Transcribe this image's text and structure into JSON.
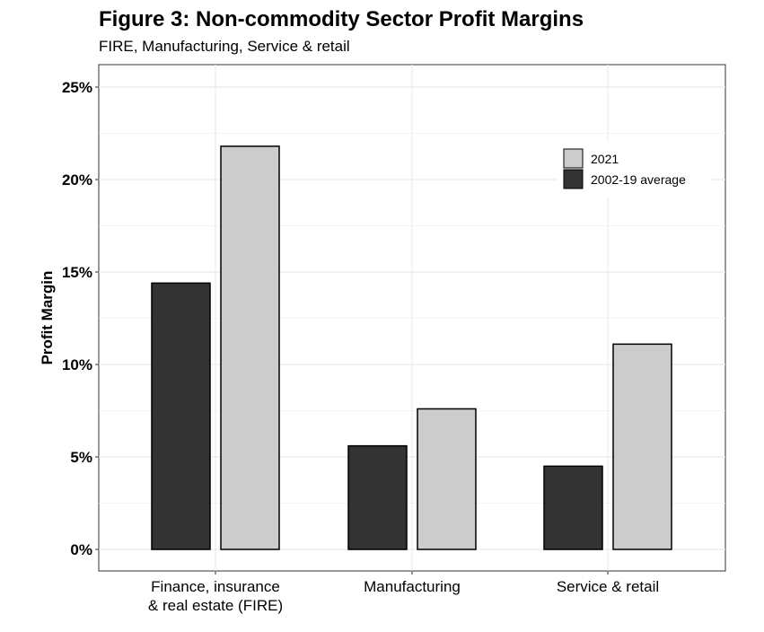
{
  "title": "Figure 3: Non-commodity Sector Profit Margins",
  "subtitle": "FIRE, Manufacturing, Service & retail",
  "chart_data": {
    "type": "bar",
    "title": "Figure 3: Non-commodity Sector Profit Margins",
    "subtitle": "FIRE, Manufacturing, Service & retail",
    "xlabel": "",
    "ylabel": "Profit Margin",
    "categories": [
      [
        "Finance, insurance",
        "& real estate (FIRE)"
      ],
      [
        "Manufacturing"
      ],
      [
        "Service & retail"
      ]
    ],
    "series": [
      {
        "name": "2002-19 average",
        "color": "#333333",
        "values": [
          14.4,
          5.6,
          4.5
        ]
      },
      {
        "name": "2021",
        "color": "#cccccc",
        "values": [
          21.8,
          7.6,
          11.1
        ]
      }
    ],
    "ylim": [
      0,
      25
    ],
    "yticks": [
      0,
      5,
      10,
      15,
      20,
      25
    ],
    "ytick_labels": [
      "0%",
      "5%",
      "10%",
      "15%",
      "20%",
      "25%"
    ],
    "legend": {
      "position": "top-right",
      "entries": [
        "2021",
        "2002-19 average"
      ],
      "colors": [
        "#cccccc",
        "#333333"
      ]
    },
    "grid": true,
    "bar_outline": "#000000"
  }
}
